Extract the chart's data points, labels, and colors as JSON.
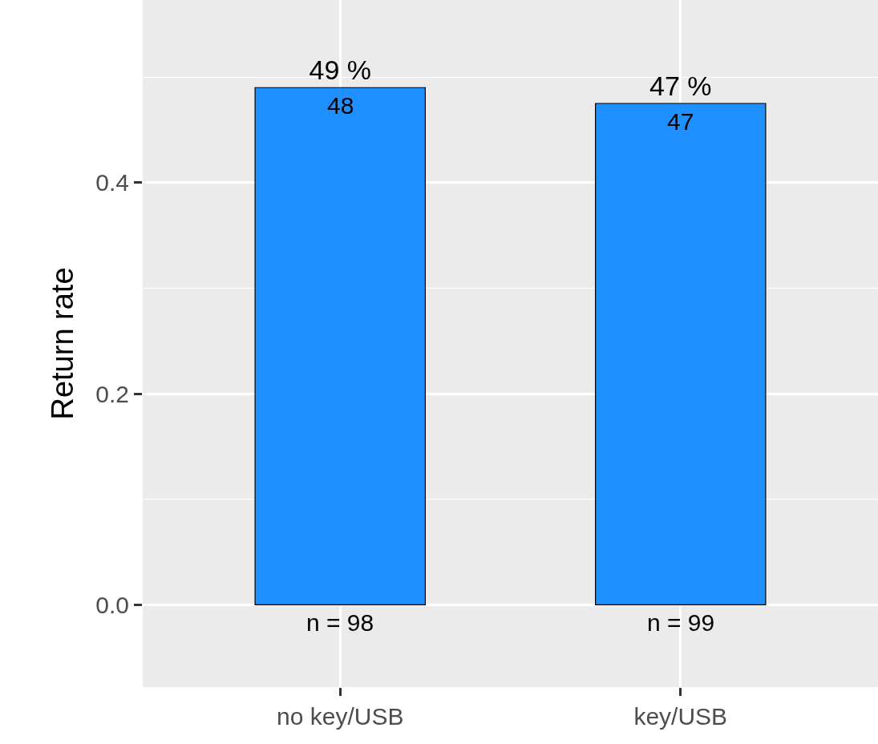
{
  "chart_data": {
    "type": "bar",
    "ylabel": "Return rate",
    "categories": [
      "no key/USB",
      "key/USB"
    ],
    "values": [
      0.49,
      0.475
    ],
    "value_labels": [
      "49 %",
      "47 %"
    ],
    "color": "#1e90ff",
    "ylim": [
      -0.078,
      0.573
    ],
    "yticks": [
      {
        "value": 0,
        "label": "0.0"
      },
      {
        "value": 0.2,
        "label": "0.2"
      },
      {
        "value": 0.4,
        "label": "0.4"
      }
    ],
    "grid": true,
    "legend": false,
    "annotations": [
      {
        "text": "48",
        "x": "no key/USB",
        "y": 0.49
      },
      {
        "text": "47",
        "x": "key/USB",
        "y": 0.475
      },
      {
        "text": "n = 98",
        "x": "no key/USB",
        "y": 0
      },
      {
        "text": "n = 99",
        "x": "key/USB",
        "y": 0
      }
    ]
  }
}
